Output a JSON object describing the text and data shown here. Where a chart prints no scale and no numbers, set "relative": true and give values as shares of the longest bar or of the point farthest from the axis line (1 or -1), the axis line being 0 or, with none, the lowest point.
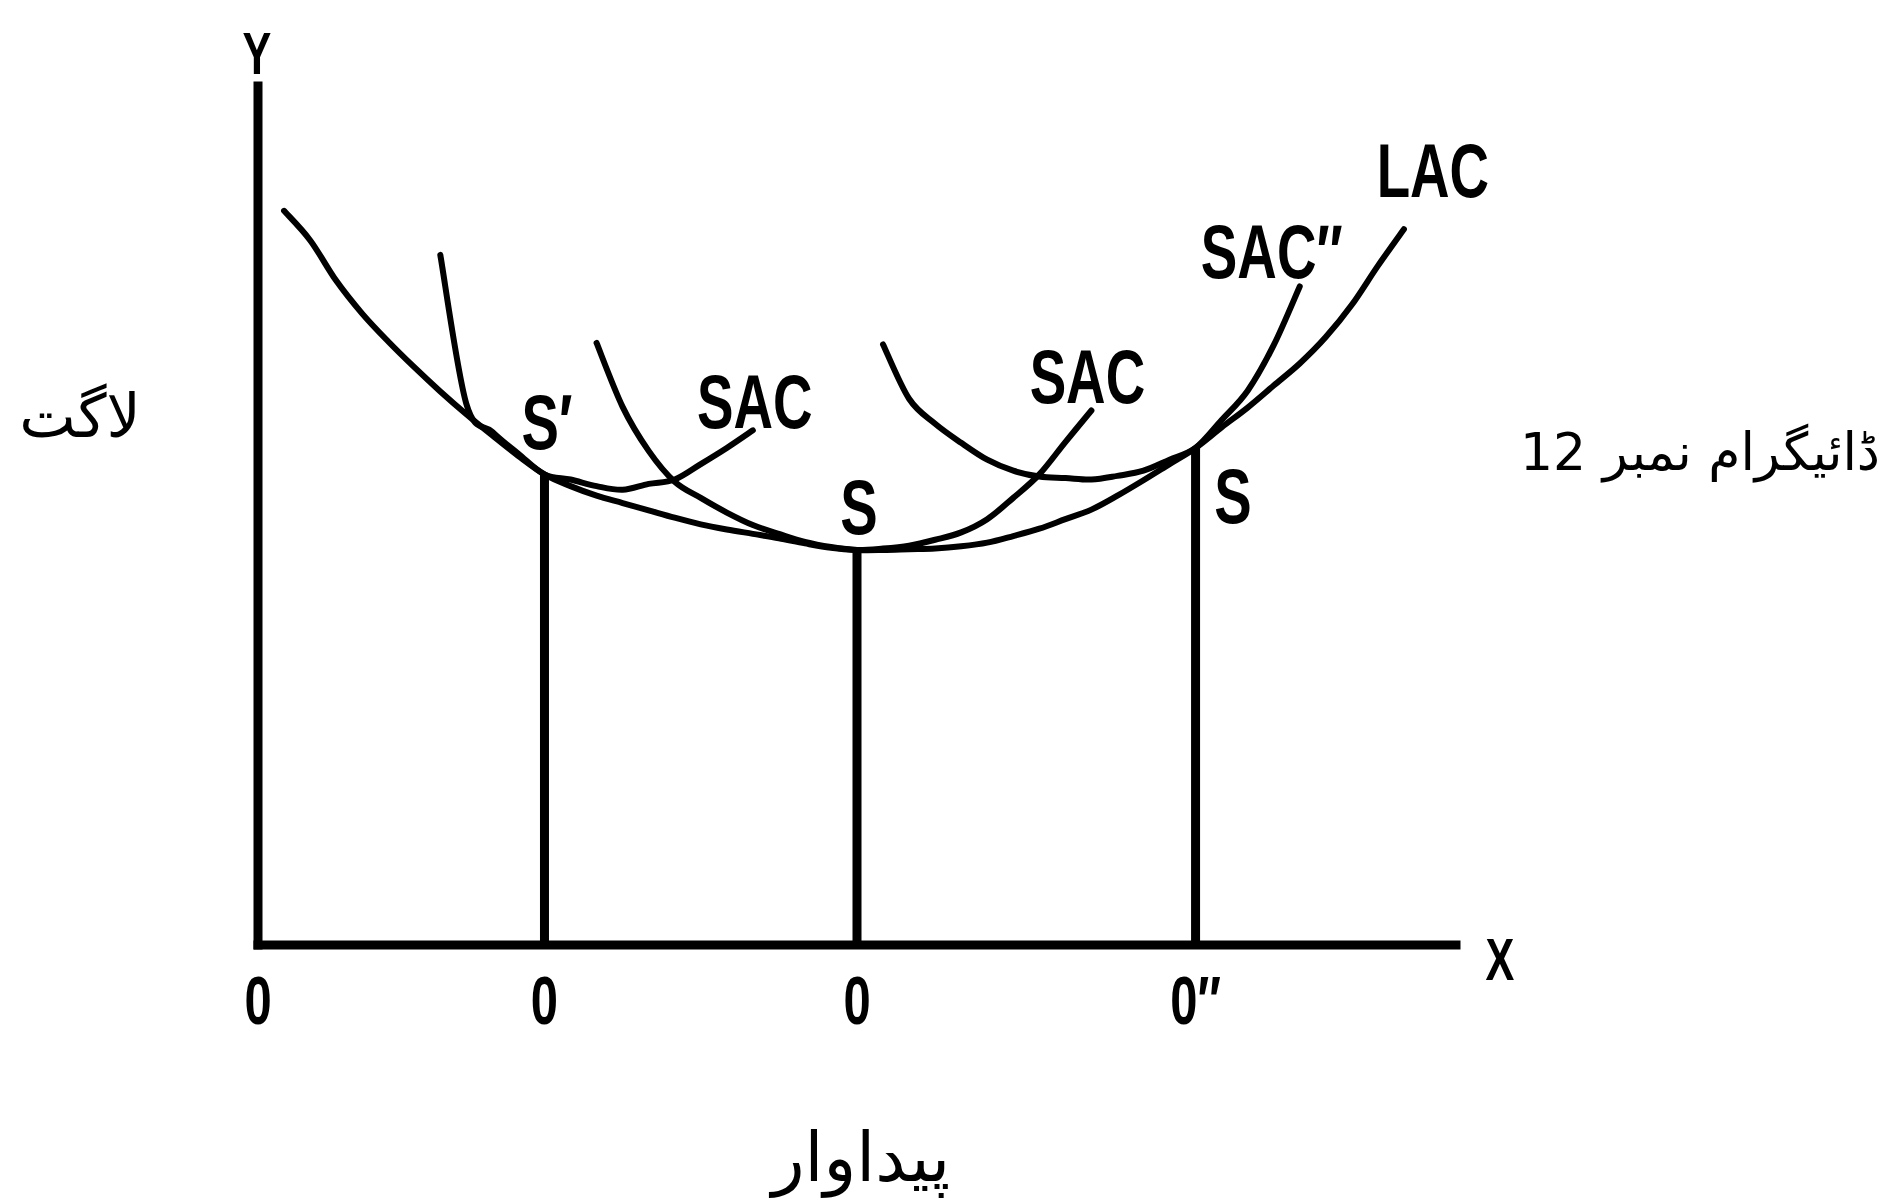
{
  "chart_data": {
    "type": "line",
    "relative": true,
    "xlabel": "پیداوار",
    "ylabel": "لاگت",
    "categories": [
      "0",
      null,
      null,
      null,
      null,
      null,
      null,
      null,
      null,
      null,
      null,
      "0",
      null,
      null,
      null,
      null,
      null,
      null,
      null,
      null,
      null,
      null,
      null,
      "0",
      null,
      null,
      null,
      null,
      null,
      null,
      null,
      null,
      null,
      null,
      null,
      null,
      "0″",
      null,
      null,
      null,
      null,
      null,
      null,
      null,
      null,
      null,
      null
    ],
    "series": [
      {
        "name": "LAC",
        "color": "#000000",
        "values": [
          null,
          1.0,
          0.96,
          0.905,
          0.86,
          0.822,
          0.787,
          0.754,
          0.723,
          0.694,
          0.666,
          0.641,
          0.625,
          0.612,
          0.602,
          0.592,
          0.582,
          0.573,
          0.566,
          0.56,
          0.554,
          0.547,
          0.541,
          0.538,
          0.538,
          0.539,
          0.54,
          0.543,
          0.548,
          0.557,
          0.567,
          0.58,
          0.593,
          0.612,
          0.633,
          0.655,
          0.677,
          0.705,
          0.732,
          0.762,
          0.792,
          0.828,
          0.872,
          0.925,
          0.975,
          null,
          null
        ]
      },
      {
        "name": "SAC",
        "color": "#000000",
        "values": [
          null,
          null,
          null,
          null,
          null,
          null,
          null,
          0.94,
          0.737,
          0.699,
          0.669,
          0.641,
          0.634,
          0.625,
          0.62,
          0.628,
          0.634,
          0.655,
          0.677,
          0.701,
          null,
          null,
          null,
          null,
          null,
          null,
          null,
          null,
          null,
          null,
          null,
          null,
          null,
          null,
          null,
          null,
          null,
          null,
          null,
          null,
          null,
          null,
          null,
          null,
          null,
          null,
          null
        ]
      },
      {
        "name": "SAC",
        "color": "#000000",
        "values": [
          null,
          null,
          null,
          null,
          null,
          null,
          null,
          null,
          null,
          null,
          null,
          null,
          null,
          0.82,
          0.733,
          0.673,
          0.631,
          0.609,
          0.589,
          0.572,
          0.56,
          0.549,
          0.542,
          0.538,
          0.54,
          0.544,
          0.552,
          0.562,
          0.58,
          0.609,
          0.641,
          0.685,
          0.728,
          null,
          null,
          null,
          null,
          null,
          null,
          null,
          null,
          null,
          null,
          null,
          null,
          null,
          null
        ]
      },
      {
        "name": "SAC″",
        "color": "#000000",
        "values": [
          null,
          null,
          null,
          null,
          null,
          null,
          null,
          null,
          null,
          null,
          null,
          null,
          null,
          null,
          null,
          null,
          null,
          null,
          null,
          null,
          null,
          null,
          null,
          null,
          0.818,
          0.744,
          0.71,
          0.684,
          0.661,
          0.646,
          0.638,
          0.636,
          0.634,
          0.639,
          0.646,
          0.661,
          0.677,
          0.715,
          0.755,
          0.817,
          0.897,
          null,
          null,
          null,
          null,
          null,
          null
        ]
      },
      {
        "type": "bar",
        "color": "#000000",
        "values": [
          null,
          null,
          null,
          null,
          null,
          null,
          null,
          null,
          null,
          null,
          null,
          0.641,
          null,
          null,
          null,
          null,
          null,
          null,
          null,
          null,
          null,
          null,
          null,
          0.538,
          null,
          null,
          null,
          null,
          null,
          null,
          null,
          null,
          null,
          null,
          null,
          null,
          0.677,
          null,
          null,
          null,
          null,
          null,
          null,
          null,
          null,
          null,
          null
        ]
      }
    ],
    "annotations": [
      "Y",
      "X",
      "ڈائیگرام نمبر 12",
      "S′",
      "S",
      "S"
    ]
  }
}
